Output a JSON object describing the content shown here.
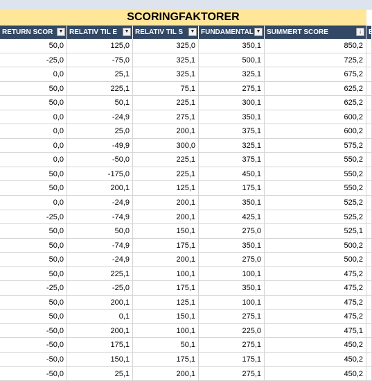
{
  "title": "SCORINGFAKTORER",
  "colors": {
    "title_bg": "#ffe699",
    "header_bg": "#324865",
    "header_text": "#ffffff",
    "grid_line": "#d4d4d4"
  },
  "headers": [
    {
      "label": "RETURN SCOR",
      "icon": "dropdown-icon"
    },
    {
      "label": "RELATIV TIL E",
      "icon": "dropdown-icon"
    },
    {
      "label": "RELATIV TIL S",
      "icon": "dropdown-icon"
    },
    {
      "label": "FUNDAMENTAL",
      "icon": "dropdown-icon"
    },
    {
      "label": "SUMMERT SCORE",
      "icon": "sort-descending-icon"
    },
    {
      "label": "E",
      "icon": ""
    }
  ],
  "rows": [
    [
      "50,0",
      "125,0",
      "325,0",
      "350,1",
      "850,2"
    ],
    [
      "-25,0",
      "-75,0",
      "325,1",
      "500,1",
      "725,2"
    ],
    [
      "0,0",
      "25,1",
      "325,1",
      "325,1",
      "675,2"
    ],
    [
      "50,0",
      "225,1",
      "75,1",
      "275,1",
      "625,2"
    ],
    [
      "50,0",
      "50,1",
      "225,1",
      "300,1",
      "625,2"
    ],
    [
      "0,0",
      "-24,9",
      "275,1",
      "350,1",
      "600,2"
    ],
    [
      "0,0",
      "25,0",
      "200,1",
      "375,1",
      "600,2"
    ],
    [
      "0,0",
      "-49,9",
      "300,0",
      "325,1",
      "575,2"
    ],
    [
      "0,0",
      "-50,0",
      "225,1",
      "375,1",
      "550,2"
    ],
    [
      "50,0",
      "-175,0",
      "225,1",
      "450,1",
      "550,2"
    ],
    [
      "50,0",
      "200,1",
      "125,1",
      "175,1",
      "550,2"
    ],
    [
      "0,0",
      "-24,9",
      "200,1",
      "350,1",
      "525,2"
    ],
    [
      "-25,0",
      "-74,9",
      "200,1",
      "425,1",
      "525,2"
    ],
    [
      "50,0",
      "50,0",
      "150,1",
      "275,0",
      "525,1"
    ],
    [
      "50,0",
      "-74,9",
      "175,1",
      "350,1",
      "500,2"
    ],
    [
      "50,0",
      "-24,9",
      "200,1",
      "275,0",
      "500,2"
    ],
    [
      "50,0",
      "225,1",
      "100,1",
      "100,1",
      "475,2"
    ],
    [
      "-25,0",
      "-25,0",
      "175,1",
      "350,1",
      "475,2"
    ],
    [
      "50,0",
      "200,1",
      "125,1",
      "100,1",
      "475,2"
    ],
    [
      "50,0",
      "0,1",
      "150,1",
      "275,1",
      "475,2"
    ],
    [
      "-50,0",
      "200,1",
      "100,1",
      "225,0",
      "475,1"
    ],
    [
      "-50,0",
      "175,1",
      "50,1",
      "275,1",
      "450,2"
    ],
    [
      "-50,0",
      "150,1",
      "175,1",
      "175,1",
      "450,2"
    ],
    [
      "-50,0",
      "25,1",
      "200,1",
      "275,1",
      "450,2"
    ]
  ]
}
